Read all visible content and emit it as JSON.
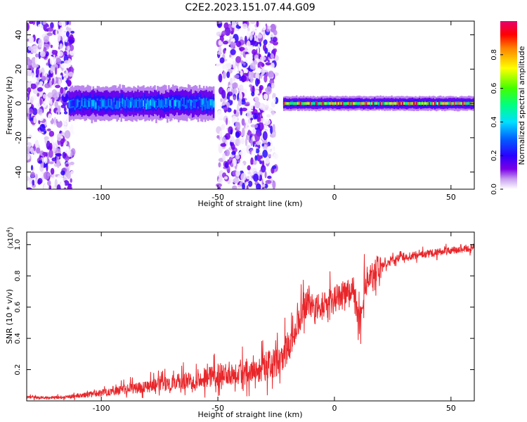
{
  "title": "C2E2.2023.151.07.44.G09",
  "chart_data": [
    {
      "type": "heatmap",
      "xlabel": "Height of straight line (km)",
      "ylabel": "Frequency (Hz)",
      "xlim": [
        -132,
        60
      ],
      "ylim": [
        -50,
        48
      ],
      "x_ticks": [
        -100,
        -50,
        0,
        50
      ],
      "y_ticks": [
        -40,
        -20,
        0,
        20,
        40
      ],
      "colorbar": {
        "label": "Normalized spectral amplitude",
        "range": [
          0,
          1
        ],
        "ticks": [
          0.0,
          0.2,
          0.4,
          0.6,
          0.8
        ],
        "colormap": [
          "#ffffff",
          "#c8a0f0",
          "#7a00e6",
          "#2b00ff",
          "#0060ff",
          "#00e0ff",
          "#00ff80",
          "#40ff00",
          "#ffff00",
          "#ff8000",
          "#ff0000",
          "#e6006e"
        ]
      },
      "regions": [
        {
          "x_range": [
            -132,
            -112
          ],
          "description_level": "noise",
          "amplitude": 0.1
        },
        {
          "x_range": [
            -114,
            -52
          ],
          "centre_frequency_hz": 0,
          "half_width_hz": 7,
          "peak_amplitude": 0.4
        },
        {
          "x_range": [
            -50,
            -25
          ],
          "description_level": "noise",
          "amplitude": 0.1
        },
        {
          "x_range": [
            -22,
            60
          ],
          "centre_frequency_hz": 0,
          "half_width_hz": 3,
          "peak_amplitude": 0.95
        }
      ]
    },
    {
      "type": "line",
      "xlabel": "Height of straight line (km)",
      "ylabel": "SNR (10 * v/v)",
      "y_scale_label": "(x10",
      "y_scale_exp": "4",
      "y_scale_close": ")",
      "xlim": [
        -132,
        60
      ],
      "ylim": [
        0,
        1.08
      ],
      "x_ticks": [
        -100,
        -50,
        0,
        50
      ],
      "y_ticks": [
        0.2,
        0.4,
        0.6,
        0.8,
        1.0
      ],
      "color": "#e8262a",
      "series": [
        {
          "x": [
            -132,
            -120,
            -110,
            -100,
            -90,
            -80,
            -70,
            -60,
            -50,
            -40,
            -30,
            -22,
            -18,
            -15,
            -12,
            -8,
            -5,
            -2,
            0,
            3,
            6,
            8,
            10,
            11,
            13,
            16,
            20,
            25,
            30,
            40,
            50,
            60
          ],
          "values": [
            0.02,
            0.02,
            0.03,
            0.05,
            0.07,
            0.09,
            0.11,
            0.13,
            0.16,
            0.18,
            0.21,
            0.24,
            0.38,
            0.52,
            0.6,
            0.58,
            0.6,
            0.62,
            0.64,
            0.66,
            0.7,
            0.72,
            0.55,
            0.5,
            0.75,
            0.8,
            0.86,
            0.9,
            0.92,
            0.94,
            0.96,
            0.98
          ]
        }
      ]
    }
  ]
}
